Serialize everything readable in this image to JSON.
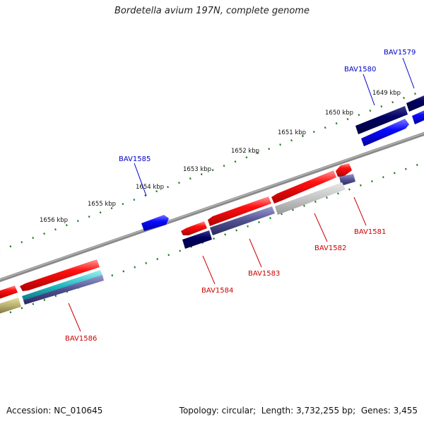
{
  "title": "Bordetella avium 197N, complete genome",
  "footer": {
    "accession_label": "Accession:",
    "accession": "NC_010645",
    "topology_label": "Topology:",
    "topology": "circular",
    "length_label": "Length:",
    "length": "3,732,255 bp",
    "genes_label": "Genes:",
    "genes": "3,455"
  },
  "colors": {
    "backbone": "#808080",
    "forward_gene": "#0000ff",
    "forward_gene_dark": "#000066",
    "reverse_gene": "#ff0000",
    "tick": "#1a7a1a",
    "label_forward": "#0000cc",
    "label_reverse": "#cc0000"
  },
  "kbp_ticks": [
    {
      "label": "1649 kbp"
    },
    {
      "label": "1650 kbp"
    },
    {
      "label": "1651 kbp"
    },
    {
      "label": "1652 kbp"
    },
    {
      "label": "1653 kbp"
    },
    {
      "label": "1654 kbp"
    },
    {
      "label": "1655 kbp"
    },
    {
      "label": "1656 kbp"
    }
  ],
  "gene_labels": [
    {
      "name": "BAV1579",
      "strand": "forward"
    },
    {
      "name": "BAV1580",
      "strand": "forward"
    },
    {
      "name": "BAV1585",
      "strand": "forward"
    },
    {
      "name": "BAV1581",
      "strand": "reverse"
    },
    {
      "name": "BAV1582",
      "strand": "reverse"
    },
    {
      "name": "BAV1583",
      "strand": "reverse"
    },
    {
      "name": "BAV1584",
      "strand": "reverse"
    },
    {
      "name": "BAV1586",
      "strand": "reverse"
    }
  ]
}
